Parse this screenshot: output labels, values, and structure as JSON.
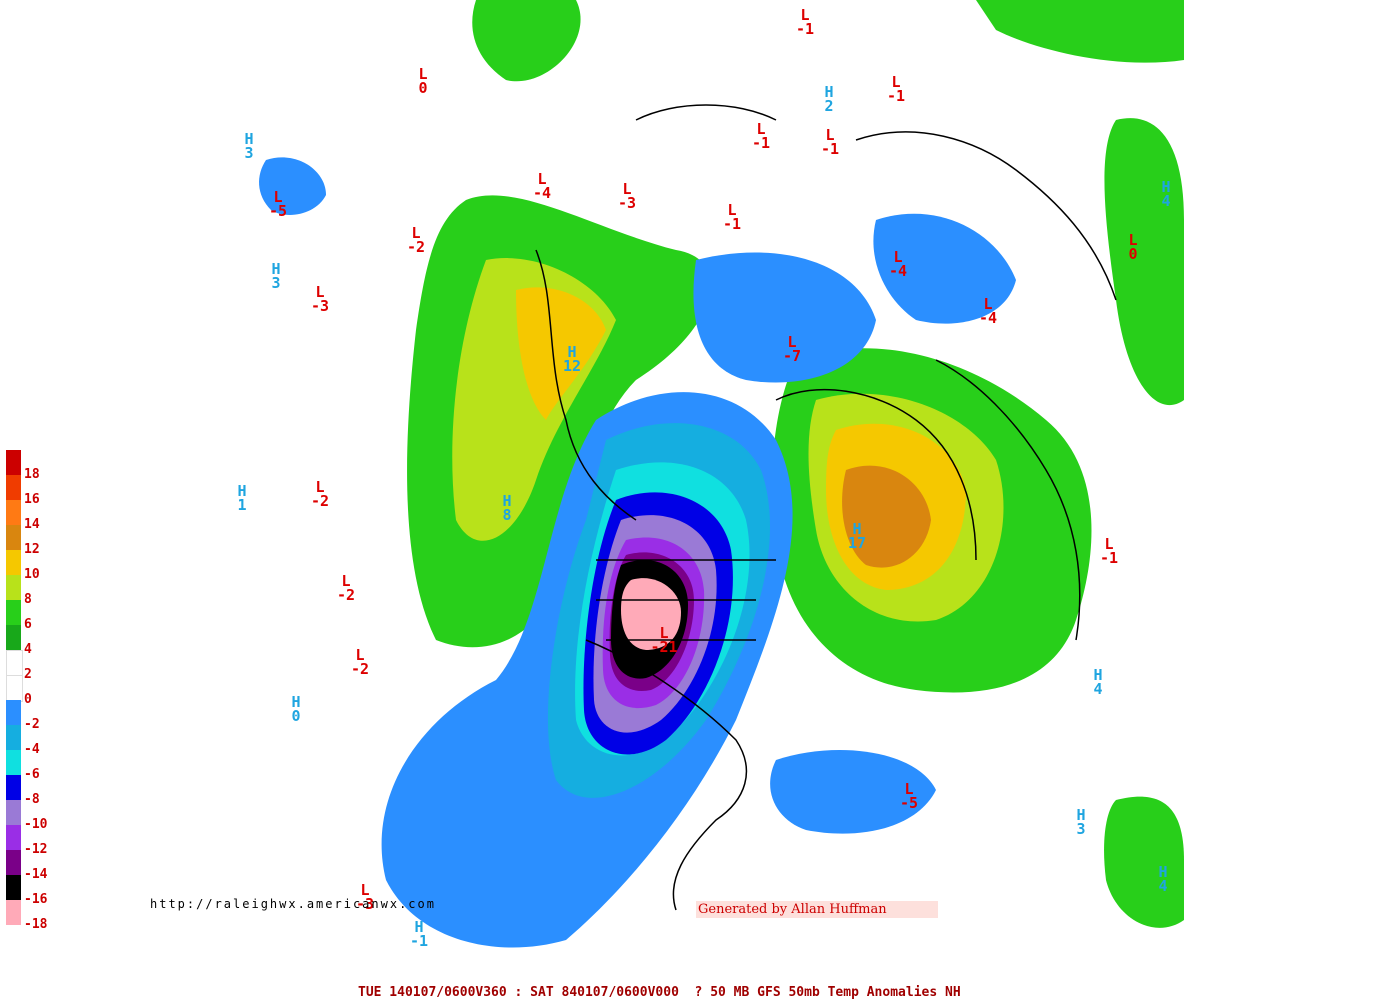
{
  "map": {
    "colors": {
      "high_label": "#1fa5e0",
      "low_label": "#dd0000",
      "coast": "#000000"
    },
    "centers": [
      {
        "type": "L",
        "value": "-1",
        "color": "#dd0000"
      },
      {
        "type": "L",
        "value": "-1",
        "color": "#dd0000"
      },
      {
        "type": "L",
        "value": "0",
        "color": "#dd0000"
      },
      {
        "type": "H",
        "value": "2",
        "color": "#1fa5e0"
      },
      {
        "type": "L",
        "value": "-1",
        "color": "#dd0000"
      },
      {
        "type": "L",
        "value": "-1",
        "color": "#dd0000"
      },
      {
        "type": "H",
        "value": "3",
        "color": "#1fa5e0"
      },
      {
        "type": "L",
        "value": "-5",
        "color": "#dd0000"
      },
      {
        "type": "L",
        "value": "-4",
        "color": "#dd0000"
      },
      {
        "type": "L",
        "value": "-3",
        "color": "#dd0000"
      },
      {
        "type": "L",
        "value": "-1",
        "color": "#dd0000"
      },
      {
        "type": "L",
        "value": "-2",
        "color": "#dd0000"
      },
      {
        "type": "H",
        "value": "3",
        "color": "#1fa5e0"
      },
      {
        "type": "L",
        "value": "-3",
        "color": "#dd0000"
      },
      {
        "type": "H",
        "value": "4",
        "color": "#1fa5e0"
      },
      {
        "type": "L",
        "value": "0",
        "color": "#dd0000"
      },
      {
        "type": "L",
        "value": "-4",
        "color": "#dd0000"
      },
      {
        "type": "L",
        "value": "-4",
        "color": "#dd0000"
      },
      {
        "type": "H",
        "value": "12",
        "color": "#1fa5e0"
      },
      {
        "type": "L",
        "value": "-7",
        "color": "#dd0000"
      },
      {
        "type": "H",
        "value": "1",
        "color": "#1fa5e0"
      },
      {
        "type": "L",
        "value": "-2",
        "color": "#dd0000"
      },
      {
        "type": "H",
        "value": "8",
        "color": "#1fa5e0"
      },
      {
        "type": "H",
        "value": "17",
        "color": "#1fa5e0"
      },
      {
        "type": "L",
        "value": "-1",
        "color": "#dd0000"
      },
      {
        "type": "L",
        "value": "-2",
        "color": "#dd0000"
      },
      {
        "type": "L",
        "value": "-21",
        "color": "#dd0000"
      },
      {
        "type": "L",
        "value": "-2",
        "color": "#dd0000"
      },
      {
        "type": "H",
        "value": "4",
        "color": "#1fa5e0"
      },
      {
        "type": "H",
        "value": "0",
        "color": "#1fa5e0"
      },
      {
        "type": "L",
        "value": "-5",
        "color": "#dd0000"
      },
      {
        "type": "H",
        "value": "3",
        "color": "#1fa5e0"
      },
      {
        "type": "H",
        "value": "4",
        "color": "#1fa5e0"
      },
      {
        "type": "L",
        "value": "-3",
        "color": "#dd0000"
      },
      {
        "type": "H",
        "value": "-1",
        "color": "#1fa5e0"
      }
    ]
  },
  "legend": {
    "items": [
      {
        "color": "#cc0000",
        "label": "18"
      },
      {
        "color": "#f03c00",
        "label": "16"
      },
      {
        "color": "#ff7a14",
        "label": "14"
      },
      {
        "color": "#d9860f",
        "label": "12"
      },
      {
        "color": "#f5c800",
        "label": "10"
      },
      {
        "color": "#b8e21a",
        "label": "8"
      },
      {
        "color": "#28cf1a",
        "label": "6"
      },
      {
        "color": "#18a81a",
        "label": "4"
      },
      {
        "color": "#ffffff",
        "label": "2"
      },
      {
        "color": "#ffffff",
        "label": "0"
      },
      {
        "color": "#2b8fff",
        "label": "-2"
      },
      {
        "color": "#15aee0",
        "label": "-4"
      },
      {
        "color": "#10e0e0",
        "label": "-6"
      },
      {
        "color": "#0000e6",
        "label": "-8"
      },
      {
        "color": "#9a7ad6",
        "label": "-10"
      },
      {
        "color": "#9a2ee6",
        "label": "-12"
      },
      {
        "color": "#7a0088",
        "label": "-14"
      },
      {
        "color": "#000000",
        "label": "-16"
      },
      {
        "color": "#ffaab8",
        "label": "-18"
      }
    ]
  },
  "url_text": "http://raleighwx.americanwx.com",
  "credit_text": "Generated by Allan Huffman",
  "footer_text": "TUE 140107/0600V360 : SAT 840107/0600V000  ? 50 MB GFS 50mb Temp Anomalies NH"
}
